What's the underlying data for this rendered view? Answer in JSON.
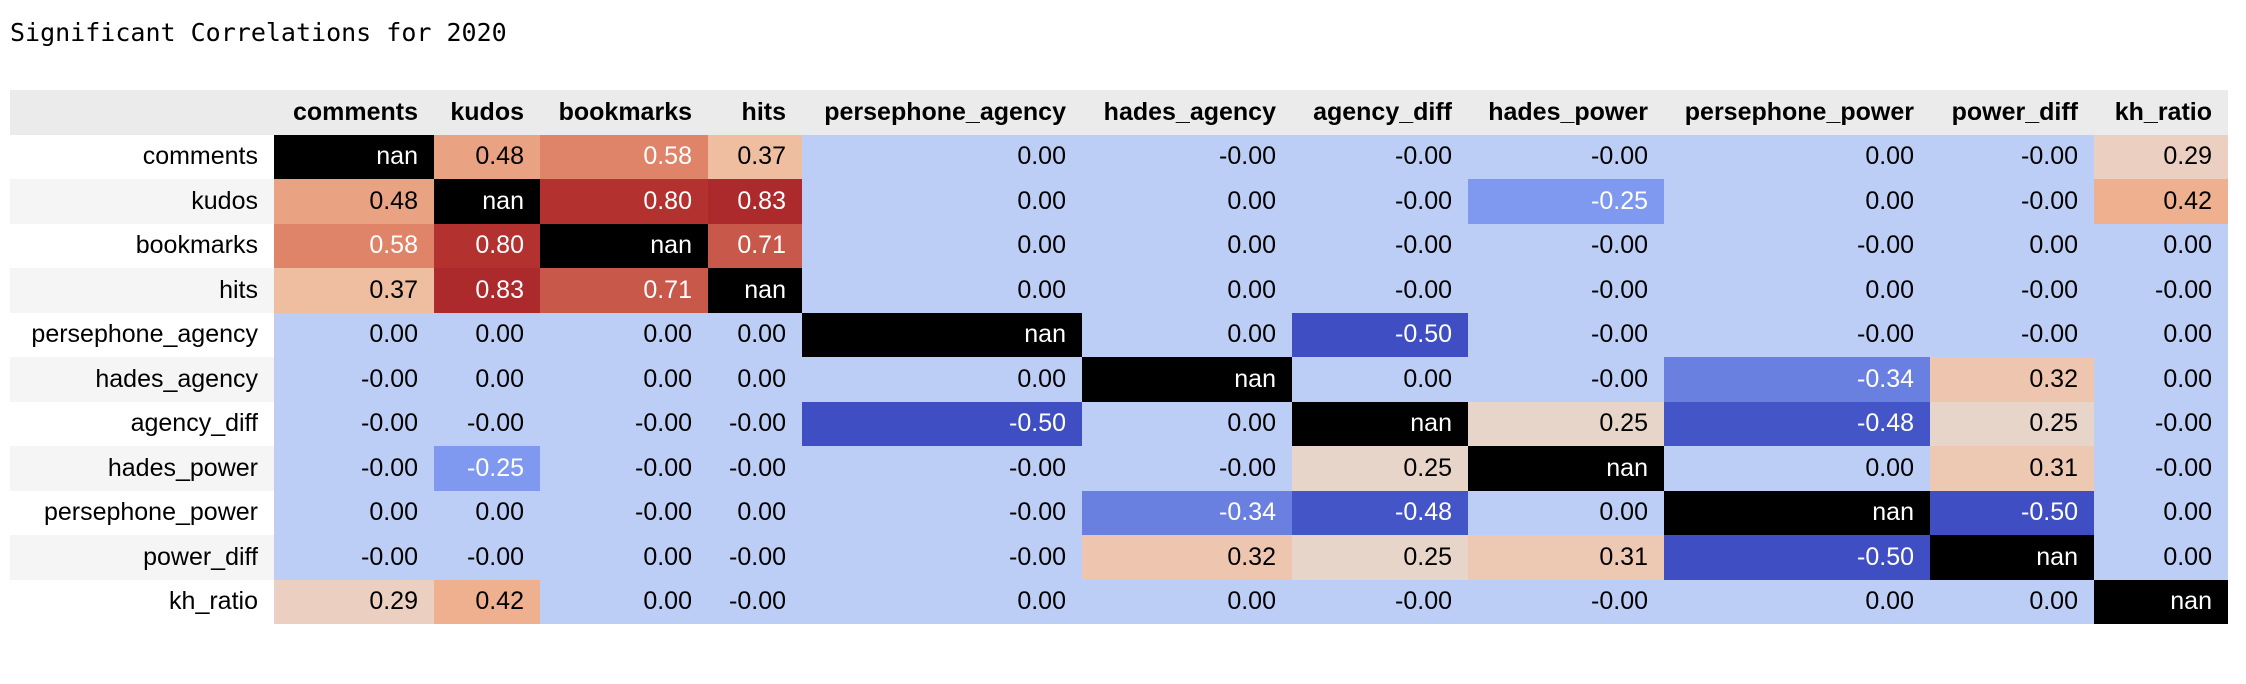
{
  "title": "Significant Correlations for 2020",
  "chart_data": {
    "type": "table",
    "title": "Significant Correlations for 2020",
    "columns": [
      "comments",
      "kudos",
      "bookmarks",
      "hits",
      "persephone_agency",
      "hades_agency",
      "agency_diff",
      "hades_power",
      "persephone_power",
      "power_diff",
      "kh_ratio"
    ],
    "rows": [
      "comments",
      "kudos",
      "bookmarks",
      "hits",
      "persephone_agency",
      "hades_agency",
      "agency_diff",
      "hades_power",
      "persephone_power",
      "power_diff",
      "kh_ratio"
    ],
    "cells": [
      [
        "nan",
        "0.48",
        "0.58",
        "0.37",
        "0.00",
        "-0.00",
        "-0.00",
        "-0.00",
        "0.00",
        "-0.00",
        "0.29"
      ],
      [
        "0.48",
        "nan",
        "0.80",
        "0.83",
        "0.00",
        "0.00",
        "-0.00",
        "-0.25",
        "0.00",
        "-0.00",
        "0.42"
      ],
      [
        "0.58",
        "0.80",
        "nan",
        "0.71",
        "0.00",
        "0.00",
        "-0.00",
        "-0.00",
        "-0.00",
        "0.00",
        "0.00"
      ],
      [
        "0.37",
        "0.83",
        "0.71",
        "nan",
        "0.00",
        "0.00",
        "-0.00",
        "-0.00",
        "0.00",
        "-0.00",
        "-0.00"
      ],
      [
        "0.00",
        "0.00",
        "0.00",
        "0.00",
        "nan",
        "0.00",
        "-0.50",
        "-0.00",
        "-0.00",
        "-0.00",
        "0.00"
      ],
      [
        "-0.00",
        "0.00",
        "0.00",
        "0.00",
        "0.00",
        "nan",
        "0.00",
        "-0.00",
        "-0.34",
        "0.32",
        "0.00"
      ],
      [
        "-0.00",
        "-0.00",
        "-0.00",
        "-0.00",
        "-0.50",
        "0.00",
        "nan",
        "0.25",
        "-0.48",
        "0.25",
        "-0.00"
      ],
      [
        "-0.00",
        "-0.25",
        "-0.00",
        "-0.00",
        "-0.00",
        "-0.00",
        "0.25",
        "nan",
        "0.00",
        "0.31",
        "-0.00"
      ],
      [
        "0.00",
        "0.00",
        "-0.00",
        "0.00",
        "-0.00",
        "-0.34",
        "-0.48",
        "0.00",
        "nan",
        "-0.50",
        "0.00"
      ],
      [
        "-0.00",
        "-0.00",
        "0.00",
        "-0.00",
        "-0.00",
        "0.32",
        "0.25",
        "0.31",
        "-0.50",
        "nan",
        "0.00"
      ],
      [
        "0.29",
        "0.42",
        "0.00",
        "-0.00",
        "0.00",
        "0.00",
        "-0.00",
        "-0.00",
        "0.00",
        "0.00",
        "nan"
      ]
    ],
    "colors": {
      "nan": "#000000",
      "zero": "#bccef5",
      "scale": [
        {
          "v": -0.5,
          "c": "#3f4fc3"
        },
        {
          "v": -0.48,
          "c": "#4355c7"
        },
        {
          "v": -0.34,
          "c": "#6a80e1"
        },
        {
          "v": -0.25,
          "c": "#7e99ef"
        },
        {
          "v": 0.25,
          "c": "#e8d5c9"
        },
        {
          "v": 0.29,
          "c": "#ebcfc0"
        },
        {
          "v": 0.31,
          "c": "#edc9b3"
        },
        {
          "v": 0.32,
          "c": "#eec6af"
        },
        {
          "v": 0.37,
          "c": "#efbea1"
        },
        {
          "v": 0.42,
          "c": "#eeb08f"
        },
        {
          "v": 0.48,
          "c": "#e9a282"
        },
        {
          "v": 0.58,
          "c": "#df8468"
        },
        {
          "v": 0.71,
          "c": "#c8584a"
        },
        {
          "v": 0.8,
          "c": "#b3312e"
        },
        {
          "v": 0.83,
          "c": "#ad2a2c"
        }
      ]
    }
  }
}
